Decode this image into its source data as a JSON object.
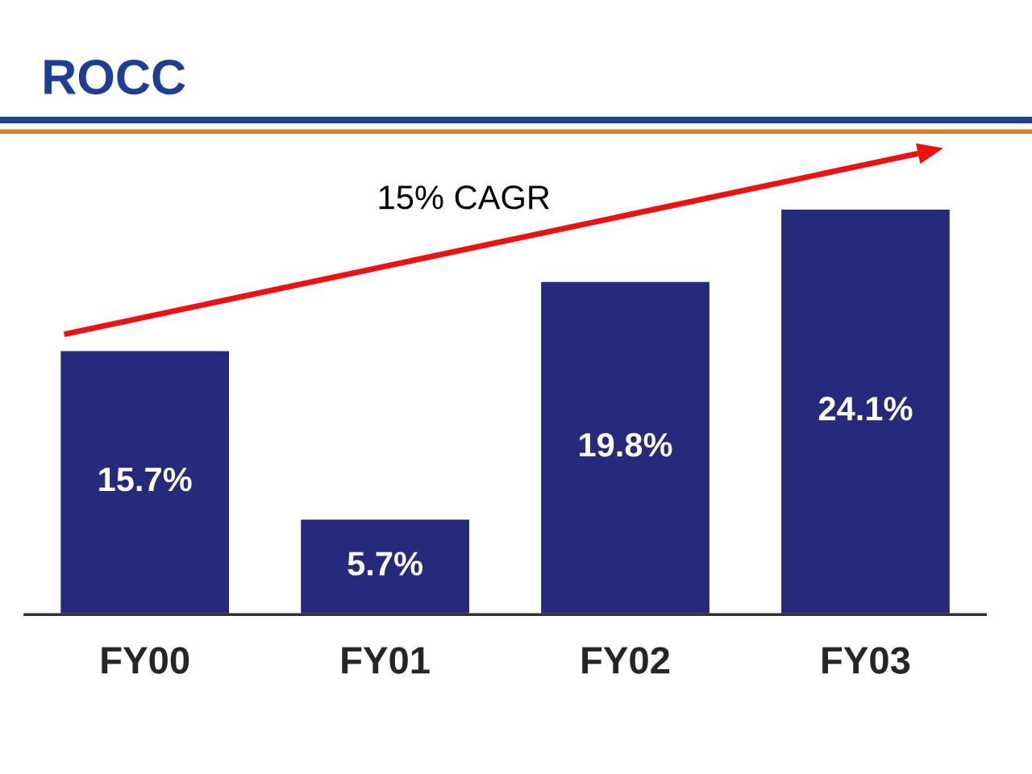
{
  "chart_data": {
    "type": "bar",
    "title": "ROCC",
    "categories": [
      "FY00",
      "FY01",
      "FY02",
      "FY03"
    ],
    "values": [
      15.7,
      5.7,
      19.8,
      24.1
    ],
    "value_labels": [
      "15.7%",
      "5.7%",
      "19.8%",
      "24.1%"
    ],
    "color": "#262a7c",
    "tick_labels": "x",
    "annotations": [
      "15% CAGR"
    ]
  }
}
